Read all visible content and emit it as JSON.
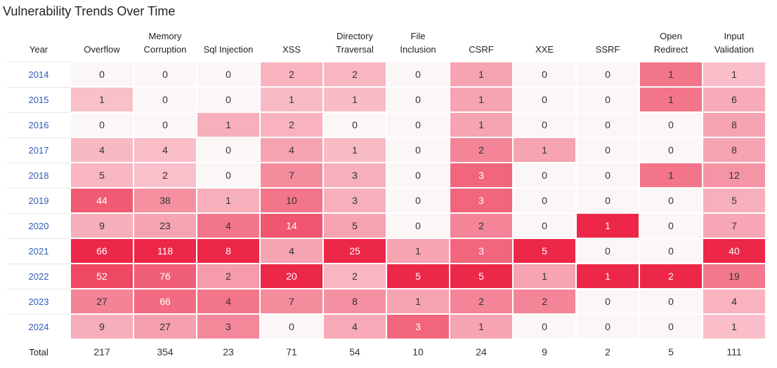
{
  "title": "Vulnerability Trends Over Time",
  "chart_data": {
    "type": "heatmap",
    "title": "Vulnerability Trends Over Time",
    "row_header": "Year",
    "columns": [
      [
        "Overflow"
      ],
      [
        "Memory",
        "Corruption"
      ],
      [
        "Sql Injection"
      ],
      [
        "XSS"
      ],
      [
        "Directory",
        "Traversal"
      ],
      [
        "File",
        "Inclusion"
      ],
      [
        "CSRF"
      ],
      [
        "XXE"
      ],
      [
        "SSRF"
      ],
      [
        "Open",
        "Redirect"
      ],
      [
        "Input",
        "Validation"
      ]
    ],
    "rows": [
      {
        "year": "2014",
        "values": [
          0,
          0,
          0,
          2,
          2,
          0,
          1,
          0,
          0,
          1,
          1
        ]
      },
      {
        "year": "2015",
        "values": [
          1,
          0,
          0,
          1,
          1,
          0,
          1,
          0,
          0,
          1,
          6
        ]
      },
      {
        "year": "2016",
        "values": [
          0,
          0,
          1,
          2,
          0,
          0,
          1,
          0,
          0,
          0,
          8
        ]
      },
      {
        "year": "2017",
        "values": [
          4,
          4,
          0,
          4,
          1,
          0,
          2,
          1,
          0,
          0,
          8
        ]
      },
      {
        "year": "2018",
        "values": [
          5,
          2,
          0,
          7,
          3,
          0,
          3,
          0,
          0,
          1,
          12
        ]
      },
      {
        "year": "2019",
        "values": [
          44,
          38,
          1,
          10,
          3,
          0,
          3,
          0,
          0,
          0,
          5
        ]
      },
      {
        "year": "2020",
        "values": [
          9,
          23,
          4,
          14,
          5,
          0,
          2,
          0,
          1,
          0,
          7
        ]
      },
      {
        "year": "2021",
        "values": [
          66,
          118,
          8,
          4,
          25,
          1,
          3,
          5,
          0,
          0,
          40
        ]
      },
      {
        "year": "2022",
        "values": [
          52,
          76,
          2,
          20,
          2,
          5,
          5,
          1,
          1,
          2,
          19
        ]
      },
      {
        "year": "2023",
        "values": [
          27,
          66,
          4,
          7,
          8,
          1,
          2,
          2,
          0,
          0,
          4
        ]
      },
      {
        "year": "2024",
        "values": [
          9,
          27,
          3,
          0,
          4,
          3,
          1,
          0,
          0,
          0,
          1
        ]
      }
    ],
    "total_label": "Total",
    "totals": [
      217,
      354,
      23,
      71,
      54,
      10,
      24,
      9,
      2,
      5,
      111
    ],
    "colors": {
      "zero": "#fbf7f6",
      "low": "#f9c2cc",
      "high": "#ec2748",
      "year_link": "#2e5bb8"
    }
  }
}
